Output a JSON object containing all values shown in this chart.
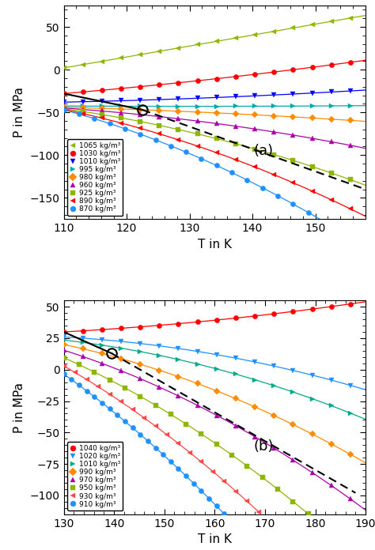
{
  "panel_a": {
    "ylabel": "P in MPa",
    "xlabel": "T in K",
    "label": "(a)",
    "xlim": [
      110,
      158
    ],
    "ylim": [
      -175,
      75
    ],
    "yticks": [
      -150,
      -100,
      -50,
      0,
      50
    ],
    "xticks": [
      110,
      120,
      130,
      140,
      150
    ],
    "cross_T": 122.5,
    "cross_P": -47.0,
    "series": [
      {
        "label": "1065 kg/m³",
        "color": "#8DB600",
        "marker": "<",
        "T0": 110,
        "P0": 2.0,
        "a": 1.3,
        "b": 0.0
      },
      {
        "label": "1030 kg/m³",
        "color": "#ff0000",
        "marker": "o",
        "T0": 110,
        "P0": -28.0,
        "a": 0.6,
        "b": 0.008
      },
      {
        "label": "1010 kg/m³",
        "color": "#0000ff",
        "marker": "v",
        "T0": 110,
        "P0": -38.5,
        "a": 0.18,
        "b": 0.005
      },
      {
        "label": "995 kg/m³",
        "color": "#00aaaa",
        "marker": ">",
        "T0": 110,
        "P0": -42.5,
        "a": -0.05,
        "b": 0.0
      },
      {
        "label": "980 kg/m³",
        "color": "#ff8c00",
        "marker": "D",
        "T0": 110,
        "P0": -44.5,
        "a": -0.22,
        "b": -0.005
      },
      {
        "label": "960 kg/m³",
        "color": "#aa00aa",
        "marker": "^",
        "T0": 110,
        "P0": -45.5,
        "a": -0.5,
        "b": -0.012
      },
      {
        "label": "925 kg/m³",
        "color": "#8DB600",
        "marker": "s",
        "T0": 122.5,
        "P0": -47.0,
        "a": -1.45,
        "b": -0.02
      },
      {
        "label": "890 kg/m³",
        "color": "#ff0000",
        "marker": "<",
        "T0": 122.5,
        "P0": -47.0,
        "a": -2.1,
        "b": -0.025
      },
      {
        "label": "870 kg/m³",
        "color": "#1e90ff",
        "marker": "o",
        "T0": 122.5,
        "P0": -47.0,
        "a": -2.7,
        "b": -0.03
      }
    ],
    "line1_T": [
      110,
      122.5
    ],
    "line1_P": [
      -28,
      -47
    ],
    "line2_T": [
      122.5,
      158
    ],
    "line2_P": [
      -47,
      -130
    ]
  },
  "panel_b": {
    "ylabel": "P in MPa",
    "xlabel": "T in K",
    "label": "(b)",
    "xlim": [
      130,
      190
    ],
    "ylim": [
      -115,
      55
    ],
    "yticks": [
      -100,
      -75,
      -50,
      -25,
      0,
      25,
      50
    ],
    "xticks": [
      130,
      140,
      150,
      160,
      170,
      180,
      190
    ],
    "cross_T": 139.5,
    "cross_P": 13.0,
    "series": [
      {
        "label": "1040 kg/m³",
        "color": "#ff0000",
        "marker": "o",
        "T0": 130,
        "P0": 30.0,
        "a": 0.22,
        "b": 0.005
      },
      {
        "label": "1020 kg/m³",
        "color": "#1e90ff",
        "marker": "v",
        "T0": 130,
        "P0": 26.2,
        "a": -0.25,
        "b": -0.008
      },
      {
        "label": "1010 kg/m³",
        "color": "#00aa88",
        "marker": ">",
        "T0": 130,
        "P0": 24.0,
        "a": -0.45,
        "b": -0.012
      },
      {
        "label": "990 kg/m³",
        "color": "#ff8c00",
        "marker": "D",
        "T0": 130,
        "P0": 20.5,
        "a": -0.85,
        "b": -0.015
      },
      {
        "label": "970 kg/m³",
        "color": "#aa00aa",
        "marker": "^",
        "T0": 130,
        "P0": 16.0,
        "a": -1.3,
        "b": -0.018
      },
      {
        "label": "950 kg/m³",
        "color": "#8DB600",
        "marker": "s",
        "T0": 130,
        "P0": 10.0,
        "a": -1.8,
        "b": -0.02
      },
      {
        "label": "930 kg/m³",
        "color": "#ff4444",
        "marker": "<",
        "T0": 130,
        "P0": 3.0,
        "a": -2.35,
        "b": -0.022
      },
      {
        "label": "910 kg/m³",
        "color": "#1e90ff",
        "marker": "o",
        "T0": 130,
        "P0": -3.5,
        "a": -2.9,
        "b": -0.025
      }
    ],
    "line1_T": [
      130,
      139.5
    ],
    "line1_P": [
      30,
      13
    ],
    "line2_T": [
      139.5,
      188
    ],
    "line2_P": [
      13,
      -100
    ]
  }
}
